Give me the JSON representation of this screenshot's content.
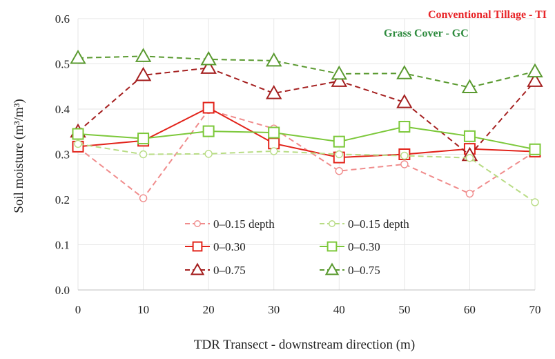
{
  "chart_data": {
    "type": "line",
    "title": "",
    "xlabel": "TDR Transect  - downstream direction (m)",
    "ylabel": "Soil moisture (m³/m³)",
    "x": [
      0,
      10,
      20,
      30,
      40,
      50,
      60,
      70
    ],
    "x_ticks": [
      "0",
      "10",
      "20",
      "30",
      "40",
      "50",
      "60",
      "70"
    ],
    "y_ticks": [
      "0.0",
      "0.1",
      "0.2",
      "0.3",
      "0.4",
      "0.5",
      "0.6"
    ],
    "xlim": [
      0,
      70
    ],
    "ylim": [
      0,
      0.6
    ],
    "grid": true,
    "legend_position": "lower-center",
    "annotations": [
      {
        "text": "Conventional Tillage - TI",
        "color": "#e8262a"
      },
      {
        "text": "Grass Cover - GC",
        "color": "#2e8b3e"
      }
    ],
    "series": [
      {
        "name": "0–0.15 depth",
        "group": "TI",
        "marker": "circle",
        "dash": "dashed",
        "color": "#f08c8c",
        "values": [
          0.315,
          0.203,
          0.398,
          0.357,
          0.263,
          0.278,
          0.213,
          0.306
        ]
      },
      {
        "name": "0–0.30",
        "group": "TI",
        "marker": "square",
        "dash": "solid",
        "color": "#e2231a",
        "values": [
          0.317,
          0.33,
          0.403,
          0.324,
          0.293,
          0.3,
          0.312,
          0.306
        ]
      },
      {
        "name": "0–0.75",
        "group": "TI",
        "marker": "triangle",
        "dash": "dashed",
        "color": "#a52020",
        "values": [
          0.35,
          0.475,
          0.491,
          0.435,
          0.462,
          0.415,
          0.298,
          0.462
        ]
      },
      {
        "name": "0–0.15 depth",
        "group": "GC",
        "marker": "circle",
        "dash": "dashed",
        "color": "#b8dc84",
        "values": [
          0.323,
          0.3,
          0.301,
          0.307,
          0.3,
          0.297,
          0.292,
          0.194
        ]
      },
      {
        "name": "0–0.30",
        "group": "GC",
        "marker": "square",
        "dash": "solid",
        "color": "#7cc83a",
        "values": [
          0.345,
          0.335,
          0.351,
          0.348,
          0.328,
          0.361,
          0.34,
          0.311
        ]
      },
      {
        "name": "0–0.75",
        "group": "GC",
        "marker": "triangle",
        "dash": "dashed",
        "color": "#5a9a30",
        "values": [
          0.513,
          0.517,
          0.51,
          0.507,
          0.478,
          0.479,
          0.448,
          0.483
        ]
      }
    ]
  }
}
